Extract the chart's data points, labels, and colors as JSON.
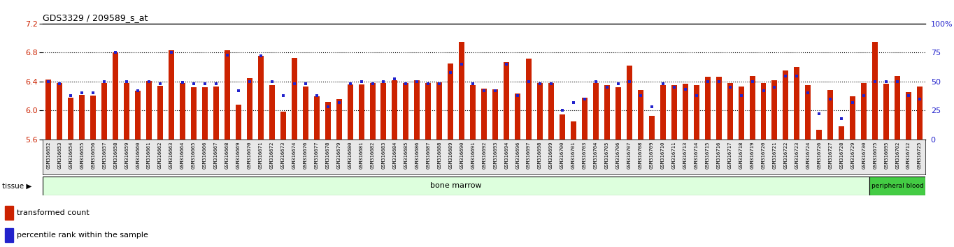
{
  "title": "GDS3329 / 209589_s_at",
  "ylim": [
    5.6,
    7.2
  ],
  "yticks": [
    5.6,
    6.0,
    6.4,
    6.8,
    7.2
  ],
  "right_yticks": [
    0,
    25,
    50,
    75,
    100
  ],
  "right_ylabels": [
    "0",
    "25",
    "50",
    "75",
    "100%"
  ],
  "bar_color": "#cc2200",
  "dot_color": "#2222cc",
  "tissue_bm_color": "#ddffdd",
  "tissue_pb_color": "#44cc44",
  "samples": [
    "GSM316652",
    "GSM316653",
    "GSM316654",
    "GSM316655",
    "GSM316656",
    "GSM316657",
    "GSM316658",
    "GSM316659",
    "GSM316660",
    "GSM316661",
    "GSM316662",
    "GSM316663",
    "GSM316664",
    "GSM316665",
    "GSM316666",
    "GSM316667",
    "GSM316668",
    "GSM316669",
    "GSM316670",
    "GSM316671",
    "GSM316672",
    "GSM316673",
    "GSM316674",
    "GSM316676",
    "GSM316677",
    "GSM316678",
    "GSM316679",
    "GSM316680",
    "GSM316681",
    "GSM316682",
    "GSM316683",
    "GSM316684",
    "GSM316685",
    "GSM316686",
    "GSM316687",
    "GSM316688",
    "GSM316689",
    "GSM316690",
    "GSM316691",
    "GSM316692",
    "GSM316693",
    "GSM316694",
    "GSM316696",
    "GSM316697",
    "GSM316698",
    "GSM316699",
    "GSM316700",
    "GSM316701",
    "GSM316703",
    "GSM316704",
    "GSM316705",
    "GSM316706",
    "GSM316707",
    "GSM316708",
    "GSM316709",
    "GSM316710",
    "GSM316711",
    "GSM316713",
    "GSM316714",
    "GSM316715",
    "GSM316716",
    "GSM316717",
    "GSM316718",
    "GSM316719",
    "GSM316720",
    "GSM316721",
    "GSM316722",
    "GSM316723",
    "GSM316724",
    "GSM316726",
    "GSM316727",
    "GSM316728",
    "GSM316729",
    "GSM316730",
    "GSM316675",
    "GSM316695",
    "GSM316702",
    "GSM316712",
    "GSM316725"
  ],
  "bar_values": [
    6.43,
    6.38,
    6.18,
    6.22,
    6.21,
    6.38,
    6.8,
    6.38,
    6.27,
    6.41,
    6.34,
    6.83,
    6.38,
    6.32,
    6.32,
    6.33,
    6.83,
    6.08,
    6.45,
    6.75,
    6.35,
    5.98,
    6.73,
    6.33,
    6.2,
    6.12,
    6.16,
    6.36,
    6.36,
    6.38,
    6.38,
    6.42,
    6.38,
    6.42,
    6.38,
    6.39,
    6.65,
    6.95,
    6.35,
    6.3,
    6.29,
    6.67,
    6.23,
    6.72,
    6.38,
    6.38,
    5.95,
    5.85,
    6.18,
    6.38,
    6.35,
    6.32,
    6.62,
    6.28,
    5.93,
    6.35,
    6.35,
    6.37,
    6.35,
    6.47,
    6.47,
    6.38,
    6.33,
    6.48,
    6.38,
    6.42,
    6.55,
    6.6,
    6.35,
    5.73,
    6.28,
    5.78,
    6.2,
    6.38,
    6.95,
    6.37,
    6.48,
    6.25,
    6.33
  ],
  "percentile_values": [
    50,
    48,
    38,
    40,
    40,
    50,
    75,
    50,
    42,
    50,
    48,
    75,
    49,
    48,
    48,
    48,
    73,
    42,
    50,
    72,
    50,
    38,
    48,
    48,
    38,
    28,
    32,
    48,
    50,
    48,
    50,
    52,
    48,
    50,
    48,
    48,
    58,
    65,
    48,
    42,
    42,
    65,
    38,
    50,
    48,
    48,
    25,
    32,
    35,
    50,
    45,
    48,
    50,
    38,
    28,
    48,
    45,
    43,
    38,
    50,
    50,
    45,
    38,
    50,
    42,
    45,
    55,
    55,
    40,
    22,
    35,
    18,
    32,
    38,
    50,
    50,
    50,
    38,
    35
  ],
  "bone_marrow_count": 74,
  "peripheral_blood_count": 5
}
